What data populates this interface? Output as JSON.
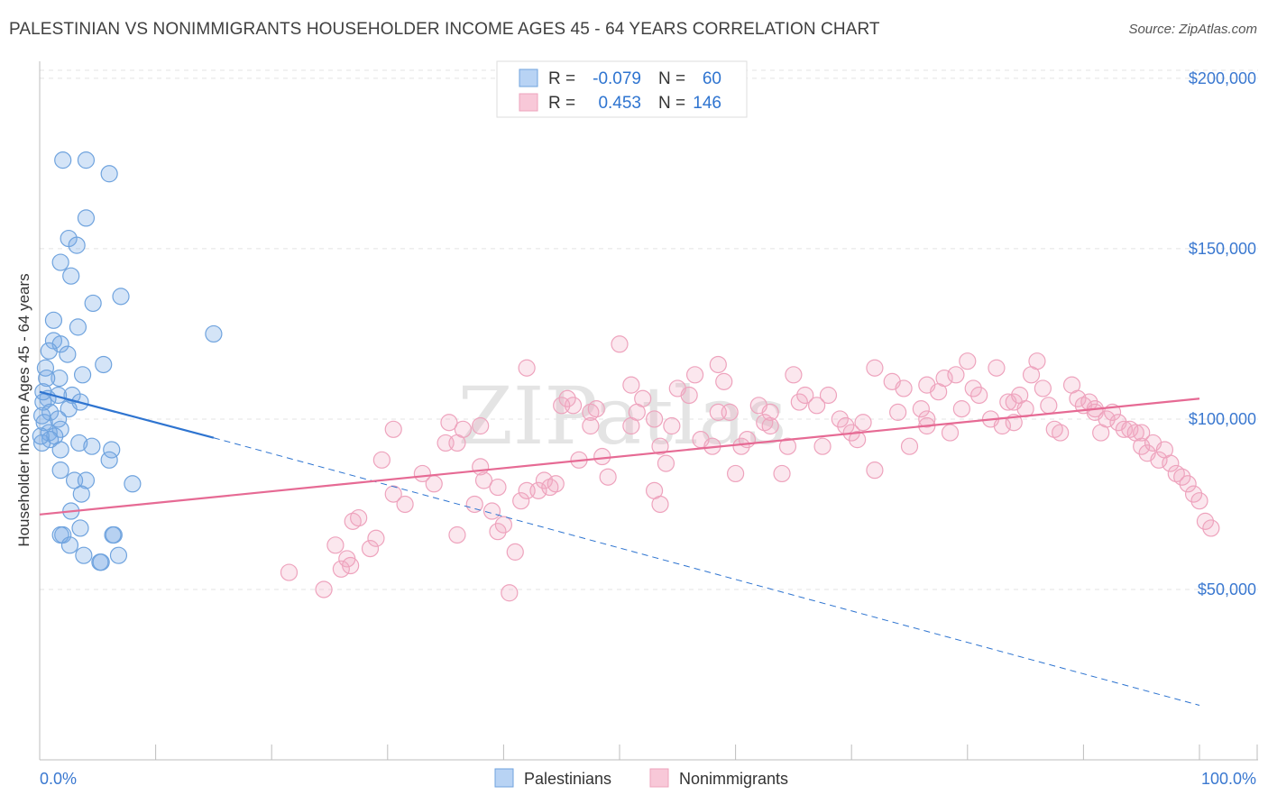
{
  "title": "PALESTINIAN VS NONIMMIGRANTS HOUSEHOLDER INCOME AGES 45 - 64 YEARS CORRELATION CHART",
  "source": "Source: ZipAtlas.com",
  "watermark": "ZIPatlas",
  "colors": {
    "blue": "#6fa3de",
    "blue_line": "#2e74d0",
    "pink": "#eea3bd",
    "pink_line": "#e66a94",
    "axis_text": "#3a78d0"
  },
  "legend_top": [
    {
      "r_label": "R = ",
      "r_value": "-0.079",
      "n_label": "N = ",
      "n_value": "60"
    },
    {
      "r_label": "R = ",
      "r_value": "0.453",
      "n_label": "N = ",
      "n_value": "146"
    }
  ],
  "legend_bottom": [
    "Palestinians",
    "Nonimmigrants"
  ],
  "chart_data": {
    "type": "scatter",
    "title": "PALESTINIAN VS NONIMMIGRANTS HOUSEHOLDER INCOME AGES 45 - 64 YEARS CORRELATION CHART",
    "xlabel": "",
    "ylabel": "Householder Income Ages 45 - 64 years",
    "x_tick_labels": [
      "0.0%",
      "100.0%"
    ],
    "y_tick_labels": [
      "$50,000",
      "$100,000",
      "$150,000",
      "$200,000"
    ],
    "y_ticks": [
      50000,
      100000,
      150000,
      200000
    ],
    "xlim": [
      0,
      100
    ],
    "ylim": [
      0,
      205000
    ],
    "series": [
      {
        "name": "Palestinians",
        "r": -0.079,
        "n": 60,
        "trend": {
          "x": [
            0,
            15
          ],
          "y": [
            108000,
            94500
          ]
        },
        "trend_extended": {
          "x": [
            15,
            100
          ],
          "y": [
            94500,
            16000
          ]
        },
        "points": [
          [
            2.0,
            176
          ],
          [
            4.0,
            176
          ],
          [
            6.0,
            172
          ],
          [
            4.0,
            159
          ],
          [
            2.5,
            153
          ],
          [
            3.2,
            151
          ],
          [
            1.8,
            146
          ],
          [
            2.7,
            142
          ],
          [
            7.0,
            136
          ],
          [
            4.6,
            134
          ],
          [
            1.2,
            129
          ],
          [
            3.3,
            127
          ],
          [
            15.0,
            125
          ],
          [
            1.2,
            123
          ],
          [
            1.8,
            122
          ],
          [
            0.8,
            120
          ],
          [
            2.4,
            119
          ],
          [
            5.5,
            116
          ],
          [
            0.5,
            115
          ],
          [
            3.7,
            113
          ],
          [
            1.7,
            112
          ],
          [
            0.6,
            112
          ],
          [
            2.8,
            107
          ],
          [
            1.6,
            107
          ],
          [
            0.7,
            106
          ],
          [
            3.5,
            105
          ],
          [
            0.3,
            105
          ],
          [
            2.5,
            103
          ],
          [
            0.9,
            102
          ],
          [
            1.6,
            100
          ],
          [
            0.4,
            99
          ],
          [
            1.8,
            97
          ],
          [
            0.8,
            96
          ],
          [
            1.3,
            95
          ],
          [
            0.9,
            94
          ],
          [
            0.2,
            93
          ],
          [
            3.4,
            93
          ],
          [
            4.5,
            92
          ],
          [
            1.8,
            91
          ],
          [
            6.2,
            91
          ],
          [
            6.0,
            88
          ],
          [
            1.8,
            85
          ],
          [
            3.0,
            82
          ],
          [
            4.0,
            82
          ],
          [
            8.0,
            81
          ],
          [
            3.6,
            78
          ],
          [
            2.7,
            73
          ],
          [
            3.5,
            68
          ],
          [
            2.0,
            66
          ],
          [
            1.8,
            66
          ],
          [
            6.4,
            66
          ],
          [
            6.3,
            66
          ],
          [
            2.6,
            63
          ],
          [
            3.8,
            60
          ],
          [
            6.8,
            60
          ],
          [
            5.2,
            58
          ],
          [
            5.3,
            58
          ],
          [
            0.1,
            95
          ],
          [
            0.2,
            101
          ],
          [
            0.3,
            108
          ]
        ]
      },
      {
        "name": "Nonimmigrants",
        "r": 0.453,
        "n": 146,
        "trend": {
          "x": [
            0,
            100
          ],
          "y": [
            72000,
            106000
          ]
        },
        "points": [
          [
            21.5,
            55
          ],
          [
            24.5,
            50
          ],
          [
            25.5,
            63
          ],
          [
            26.0,
            56
          ],
          [
            26.5,
            59
          ],
          [
            26.8,
            57
          ],
          [
            27.0,
            70
          ],
          [
            27.5,
            71
          ],
          [
            28.5,
            62
          ],
          [
            29.0,
            65
          ],
          [
            29.5,
            88
          ],
          [
            30.5,
            97
          ],
          [
            30.5,
            78
          ],
          [
            31.5,
            75
          ],
          [
            33.0,
            84
          ],
          [
            34.0,
            81
          ],
          [
            35.0,
            93
          ],
          [
            35.3,
            99
          ],
          [
            36.0,
            93
          ],
          [
            36.0,
            66
          ],
          [
            36.5,
            97
          ],
          [
            37.5,
            75
          ],
          [
            38.0,
            86
          ],
          [
            38.3,
            82
          ],
          [
            39.0,
            73
          ],
          [
            39.5,
            80
          ],
          [
            39.5,
            67
          ],
          [
            40.0,
            69
          ],
          [
            40.5,
            49
          ],
          [
            41.0,
            61
          ],
          [
            41.5,
            76
          ],
          [
            42.0,
            79
          ],
          [
            42.0,
            115
          ],
          [
            43.0,
            79
          ],
          [
            43.5,
            82
          ],
          [
            44.0,
            80
          ],
          [
            44.5,
            81
          ],
          [
            45.0,
            104
          ],
          [
            46.0,
            104
          ],
          [
            46.5,
            88
          ],
          [
            47.5,
            102
          ],
          [
            47.5,
            98
          ],
          [
            48.0,
            103
          ],
          [
            48.5,
            89
          ],
          [
            49.0,
            83
          ],
          [
            50.0,
            122
          ],
          [
            51.0,
            110
          ],
          [
            51.0,
            98
          ],
          [
            51.5,
            102
          ],
          [
            52.0,
            106
          ],
          [
            53.0,
            79
          ],
          [
            53.5,
            75
          ],
          [
            53.5,
            92
          ],
          [
            54.0,
            87
          ],
          [
            54.5,
            98
          ],
          [
            55.0,
            109
          ],
          [
            56.0,
            107
          ],
          [
            56.5,
            113
          ],
          [
            57.0,
            94
          ],
          [
            58.0,
            92
          ],
          [
            58.5,
            116
          ],
          [
            59.0,
            111
          ],
          [
            59.5,
            102
          ],
          [
            60.0,
            84
          ],
          [
            60.5,
            92
          ],
          [
            61.0,
            94
          ],
          [
            62.0,
            104
          ],
          [
            62.5,
            99
          ],
          [
            63.0,
            98
          ],
          [
            63.0,
            102
          ],
          [
            64.0,
            84
          ],
          [
            64.5,
            92
          ],
          [
            65.0,
            113
          ],
          [
            65.5,
            105
          ],
          [
            66.0,
            107
          ],
          [
            67.0,
            104
          ],
          [
            67.5,
            92
          ],
          [
            68.0,
            107
          ],
          [
            69.0,
            100
          ],
          [
            70.0,
            96
          ],
          [
            70.5,
            94
          ],
          [
            71.0,
            99
          ],
          [
            72.0,
            85
          ],
          [
            72.0,
            115
          ],
          [
            73.5,
            111
          ],
          [
            74.0,
            102
          ],
          [
            74.5,
            109
          ],
          [
            75.0,
            92
          ],
          [
            76.0,
            103
          ],
          [
            76.5,
            110
          ],
          [
            76.5,
            100
          ],
          [
            77.5,
            108
          ],
          [
            78.0,
            112
          ],
          [
            78.5,
            96
          ],
          [
            79.0,
            113
          ],
          [
            79.5,
            103
          ],
          [
            80.0,
            117
          ],
          [
            80.5,
            109
          ],
          [
            81.0,
            107
          ],
          [
            82.0,
            100
          ],
          [
            82.5,
            115
          ],
          [
            83.0,
            98
          ],
          [
            83.5,
            105
          ],
          [
            84.0,
            105
          ],
          [
            84.5,
            107
          ],
          [
            85.0,
            103
          ],
          [
            85.5,
            113
          ],
          [
            86.0,
            117
          ],
          [
            86.5,
            109
          ],
          [
            87.0,
            104
          ],
          [
            87.5,
            97
          ],
          [
            88.0,
            96
          ],
          [
            89.0,
            110
          ],
          [
            89.5,
            106
          ],
          [
            90.0,
            104
          ],
          [
            90.5,
            105
          ],
          [
            91.0,
            102
          ],
          [
            91.5,
            96
          ],
          [
            92.0,
            100
          ],
          [
            92.5,
            102
          ],
          [
            93.0,
            99
          ],
          [
            93.5,
            97
          ],
          [
            94.0,
            97
          ],
          [
            94.5,
            96
          ],
          [
            95.0,
            92
          ],
          [
            95.5,
            90
          ],
          [
            96.0,
            93
          ],
          [
            96.5,
            88
          ],
          [
            97.0,
            91
          ],
          [
            97.5,
            87
          ],
          [
            98.0,
            84
          ],
          [
            98.5,
            83
          ],
          [
            99.0,
            81
          ],
          [
            99.5,
            78
          ],
          [
            100.0,
            76
          ],
          [
            100.5,
            70
          ],
          [
            101.0,
            68
          ],
          [
            95.0,
            96
          ],
          [
            91.0,
            103
          ],
          [
            84.0,
            99
          ],
          [
            76.5,
            98
          ],
          [
            69.5,
            98
          ],
          [
            58.5,
            102
          ],
          [
            53.0,
            100
          ],
          [
            45.5,
            106
          ],
          [
            38.0,
            98
          ]
        ]
      }
    ]
  }
}
